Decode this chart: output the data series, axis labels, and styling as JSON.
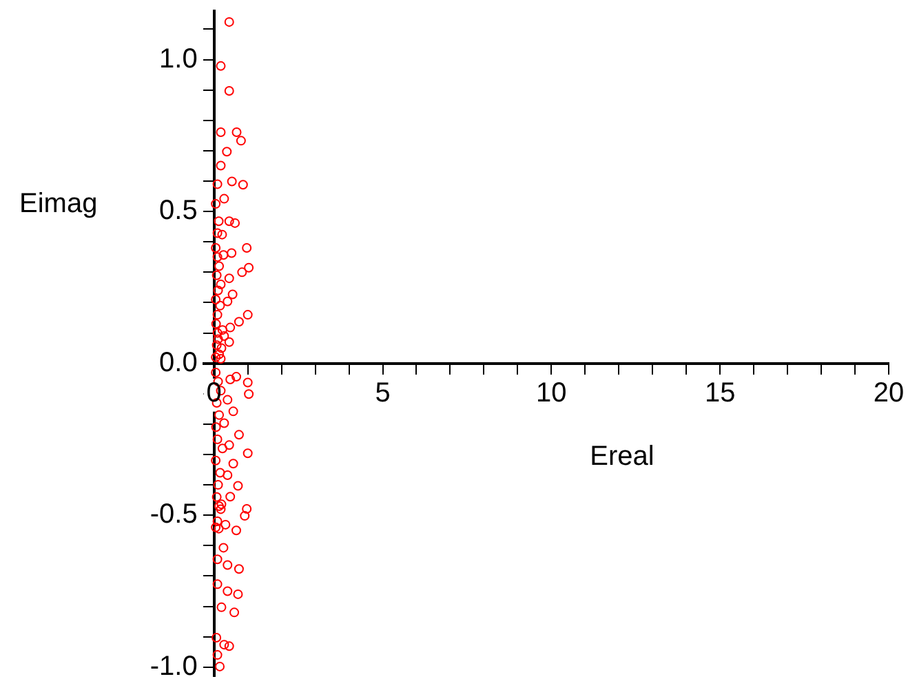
{
  "chart_data": {
    "type": "scatter",
    "xlabel": "Ereal",
    "ylabel": "Eimag",
    "marker": "circle",
    "color": "#ff0000",
    "xlim": [
      -0.3,
      20
    ],
    "ylim": [
      -1.03,
      1.16
    ],
    "xticks": [
      0,
      {
        "value": 1,
        "label": null
      },
      {
        "value": 2,
        "label": null
      },
      {
        "value": 3,
        "label": null
      },
      {
        "value": 4,
        "label": null
      },
      5,
      {
        "value": 6,
        "label": null
      },
      {
        "value": 7,
        "label": null
      },
      {
        "value": 8,
        "label": null
      },
      {
        "value": 9,
        "label": null
      },
      10,
      {
        "value": 11,
        "label": null
      },
      {
        "value": 12,
        "label": null
      },
      {
        "value": 13,
        "label": null
      },
      {
        "value": 14,
        "label": null
      },
      15,
      {
        "value": 16,
        "label": null
      },
      {
        "value": 17,
        "label": null
      },
      {
        "value": 18,
        "label": null
      },
      {
        "value": 19,
        "label": null
      },
      20
    ],
    "yticks": [
      {
        "value": -1,
        "label": "-1.0"
      },
      {
        "value": -0.9,
        "label": null
      },
      {
        "value": -0.8,
        "label": null
      },
      {
        "value": -0.7,
        "label": null
      },
      {
        "value": -0.6,
        "label": null
      },
      -0.5,
      {
        "value": -0.4,
        "label": null
      },
      {
        "value": -0.3,
        "label": null
      },
      {
        "value": -0.2,
        "label": null
      },
      {
        "value": -0.1,
        "label": null
      },
      {
        "value": 0,
        "label": "0.0"
      },
      {
        "value": 0.1,
        "label": null
      },
      {
        "value": 0.2,
        "label": null
      },
      {
        "value": 0.3,
        "label": null
      },
      {
        "value": 0.4,
        "label": null
      },
      0.5,
      {
        "value": 0.6,
        "label": null
      },
      {
        "value": 0.7,
        "label": null
      },
      {
        "value": 0.8,
        "label": null
      },
      {
        "value": 0.9,
        "label": null
      },
      {
        "value": 1,
        "label": "1.0"
      },
      {
        "value": 1.1,
        "label": null
      }
    ],
    "x": [
      0.45,
      0.2,
      0.45,
      0.2,
      0.67,
      0.8,
      0.38,
      0.2,
      0.1,
      0.53,
      0.86,
      0.3,
      0.05,
      0.14,
      0.45,
      0.62,
      0.1,
      0.24,
      0.97,
      0.52,
      0.28,
      1.03,
      0.83,
      0.45,
      0.55,
      0.4,
      1.0,
      0.74,
      0.48,
      0.3,
      0.45,
      0.22,
      0.05,
      0.1,
      0.15,
      0.08,
      0.2,
      0.12,
      0.05,
      0.18,
      0.1,
      0.06,
      0.25,
      0.12,
      0.08,
      0.15,
      0.05,
      0.2,
      0.1,
      0.66,
      1.0,
      1.03,
      0.48,
      0.4,
      0.57,
      0.3,
      0.74,
      0.45,
      1.0,
      0.57,
      0.4,
      0.71,
      0.48,
      0.22,
      0.97,
      0.91,
      0.34,
      0.66,
      0.14,
      0.28,
      0.1,
      0.4,
      0.74,
      0.1,
      0.4,
      0.71,
      0.22,
      0.6,
      0.07,
      0.3,
      0.45,
      0.1,
      0.17,
      0.05,
      0.12,
      0.2,
      0.08,
      0.15,
      0.06,
      0.1,
      0.25,
      0.05,
      0.18,
      0.12,
      0.08,
      0.2,
      0.1,
      0.05,
      0.15
    ],
    "values": [
      1.124,
      0.979,
      0.897,
      0.761,
      0.761,
      0.733,
      0.697,
      0.651,
      0.59,
      0.599,
      0.588,
      0.542,
      0.525,
      0.468,
      0.468,
      0.462,
      0.429,
      0.424,
      0.38,
      0.363,
      0.357,
      0.315,
      0.3,
      0.28,
      0.227,
      0.204,
      0.16,
      0.137,
      0.118,
      0.09,
      0.07,
      0.05,
      0.38,
      0.35,
      0.32,
      0.29,
      0.26,
      0.24,
      0.21,
      0.19,
      0.16,
      0.13,
      0.11,
      0.08,
      0.06,
      0.03,
      0.02,
      0.015,
      0.1,
      -0.044,
      -0.063,
      -0.101,
      -0.053,
      -0.12,
      -0.158,
      -0.197,
      -0.235,
      -0.269,
      -0.296,
      -0.33,
      -0.368,
      -0.403,
      -0.439,
      -0.464,
      -0.479,
      -0.502,
      -0.531,
      -0.55,
      -0.544,
      -0.607,
      -0.645,
      -0.664,
      -0.677,
      -0.727,
      -0.75,
      -0.76,
      -0.803,
      -0.82,
      -0.903,
      -0.926,
      -0.931,
      -0.96,
      -0.998,
      -0.03,
      -0.06,
      -0.09,
      -0.13,
      -0.17,
      -0.21,
      -0.25,
      -0.28,
      -0.32,
      -0.36,
      -0.4,
      -0.44,
      -0.48,
      -0.52,
      -0.54,
      -0.47
    ]
  }
}
